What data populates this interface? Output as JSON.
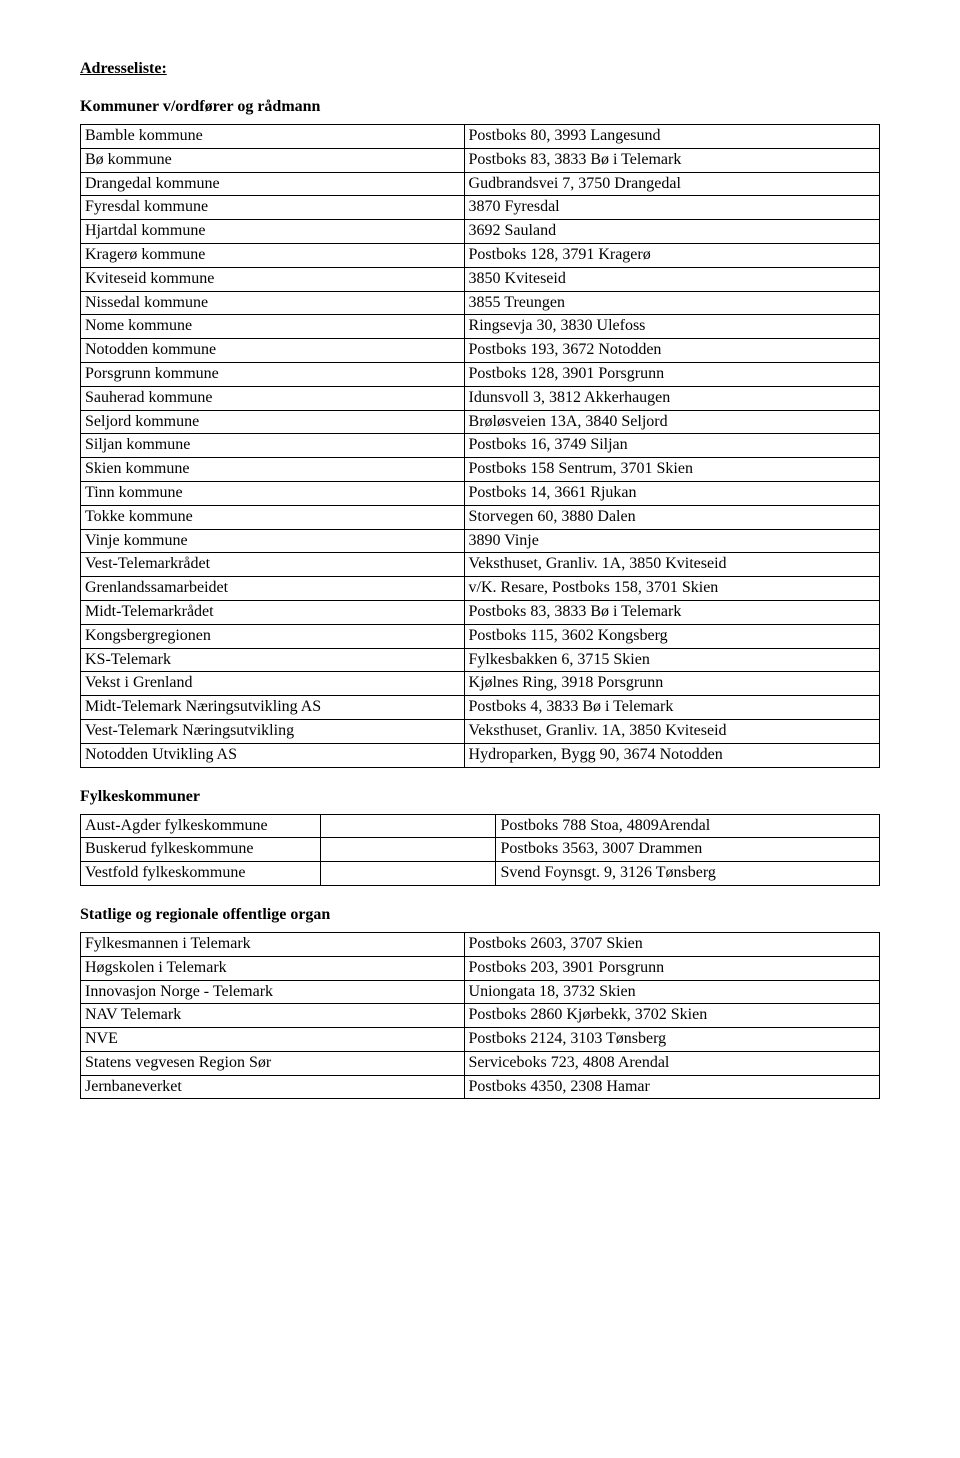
{
  "headings": {
    "main": "Adresseliste:",
    "section1": "Kommuner v/ordfører og rådmann",
    "section2": "Fylkeskommuner",
    "section3": "Statlige og regionale offentlige organ"
  },
  "table1": {
    "rows": [
      [
        "Bamble kommune",
        "Postboks 80, 3993 Langesund"
      ],
      [
        "Bø kommune",
        "Postboks 83, 3833 Bø i Telemark"
      ],
      [
        "Drangedal kommune",
        "Gudbrandsvei 7, 3750 Drangedal"
      ],
      [
        "Fyresdal kommune",
        "3870 Fyresdal"
      ],
      [
        "Hjartdal kommune",
        "3692 Sauland"
      ],
      [
        "Kragerø kommune",
        "Postboks 128, 3791 Kragerø"
      ],
      [
        "Kviteseid kommune",
        "3850 Kviteseid"
      ],
      [
        "Nissedal kommune",
        "3855 Treungen"
      ],
      [
        "Nome kommune",
        "Ringsevja 30, 3830 Ulefoss"
      ],
      [
        "Notodden kommune",
        "Postboks 193, 3672 Notodden"
      ],
      [
        "Porsgrunn kommune",
        "Postboks 128, 3901 Porsgrunn"
      ],
      [
        "Sauherad kommune",
        "Idunsvoll 3, 3812 Akkerhaugen"
      ],
      [
        "Seljord kommune",
        "Brøløsveien 13A, 3840 Seljord"
      ],
      [
        "Siljan kommune",
        "Postboks 16, 3749 Siljan"
      ],
      [
        "Skien kommune",
        "Postboks 158 Sentrum, 3701 Skien"
      ],
      [
        "Tinn kommune",
        "Postboks 14, 3661 Rjukan"
      ],
      [
        "Tokke kommune",
        "Storvegen 60, 3880 Dalen"
      ],
      [
        "Vinje kommune",
        "3890 Vinje"
      ],
      [
        "Vest-Telemarkrådet",
        "Veksthuset, Granliv. 1A, 3850 Kviteseid"
      ],
      [
        "Grenlandssamarbeidet",
        "v/K. Resare, Postboks 158, 3701 Skien"
      ],
      [
        "Midt-Telemarkrådet",
        "Postboks 83, 3833 Bø i Telemark"
      ],
      [
        "Kongsbergregionen",
        "Postboks 115, 3602 Kongsberg"
      ],
      [
        "KS-Telemark",
        "Fylkesbakken 6, 3715 Skien"
      ],
      [
        "Vekst i Grenland",
        "Kjølnes Ring, 3918 Porsgrunn"
      ],
      [
        "Midt-Telemark Næringsutvikling AS",
        "Postboks 4, 3833 Bø i Telemark"
      ],
      [
        "Vest-Telemark Næringsutvikling",
        "Veksthuset, Granliv. 1A, 3850 Kviteseid"
      ],
      [
        "Notodden Utvikling AS",
        "Hydroparken, Bygg 90, 3674 Notodden"
      ]
    ]
  },
  "table2": {
    "rows": [
      [
        "Aust-Agder fylkeskommune",
        "",
        "Postboks 788 Stoa, 4809Arendal"
      ],
      [
        "Buskerud fylkeskommune",
        "",
        "Postboks 3563, 3007 Drammen"
      ],
      [
        "Vestfold fylkeskommune",
        "",
        "Svend Foynsgt. 9, 3126 Tønsberg"
      ]
    ]
  },
  "table3": {
    "rows": [
      [
        "Fylkesmannen i Telemark",
        "Postboks 2603, 3707 Skien"
      ],
      [
        "Høgskolen i Telemark",
        "Postboks 203, 3901 Porsgrunn"
      ],
      [
        "Innovasjon Norge - Telemark",
        "Uniongata 18, 3732 Skien"
      ],
      [
        "NAV Telemark",
        "Postboks 2860 Kjørbekk, 3702 Skien"
      ],
      [
        "NVE",
        "Postboks 2124, 3103 Tønsberg"
      ],
      [
        "Statens vegvesen Region Sør",
        "Serviceboks 723, 4808 Arendal"
      ],
      [
        "Jernbaneverket",
        "Postboks 4350, 2308 Hamar"
      ]
    ]
  }
}
